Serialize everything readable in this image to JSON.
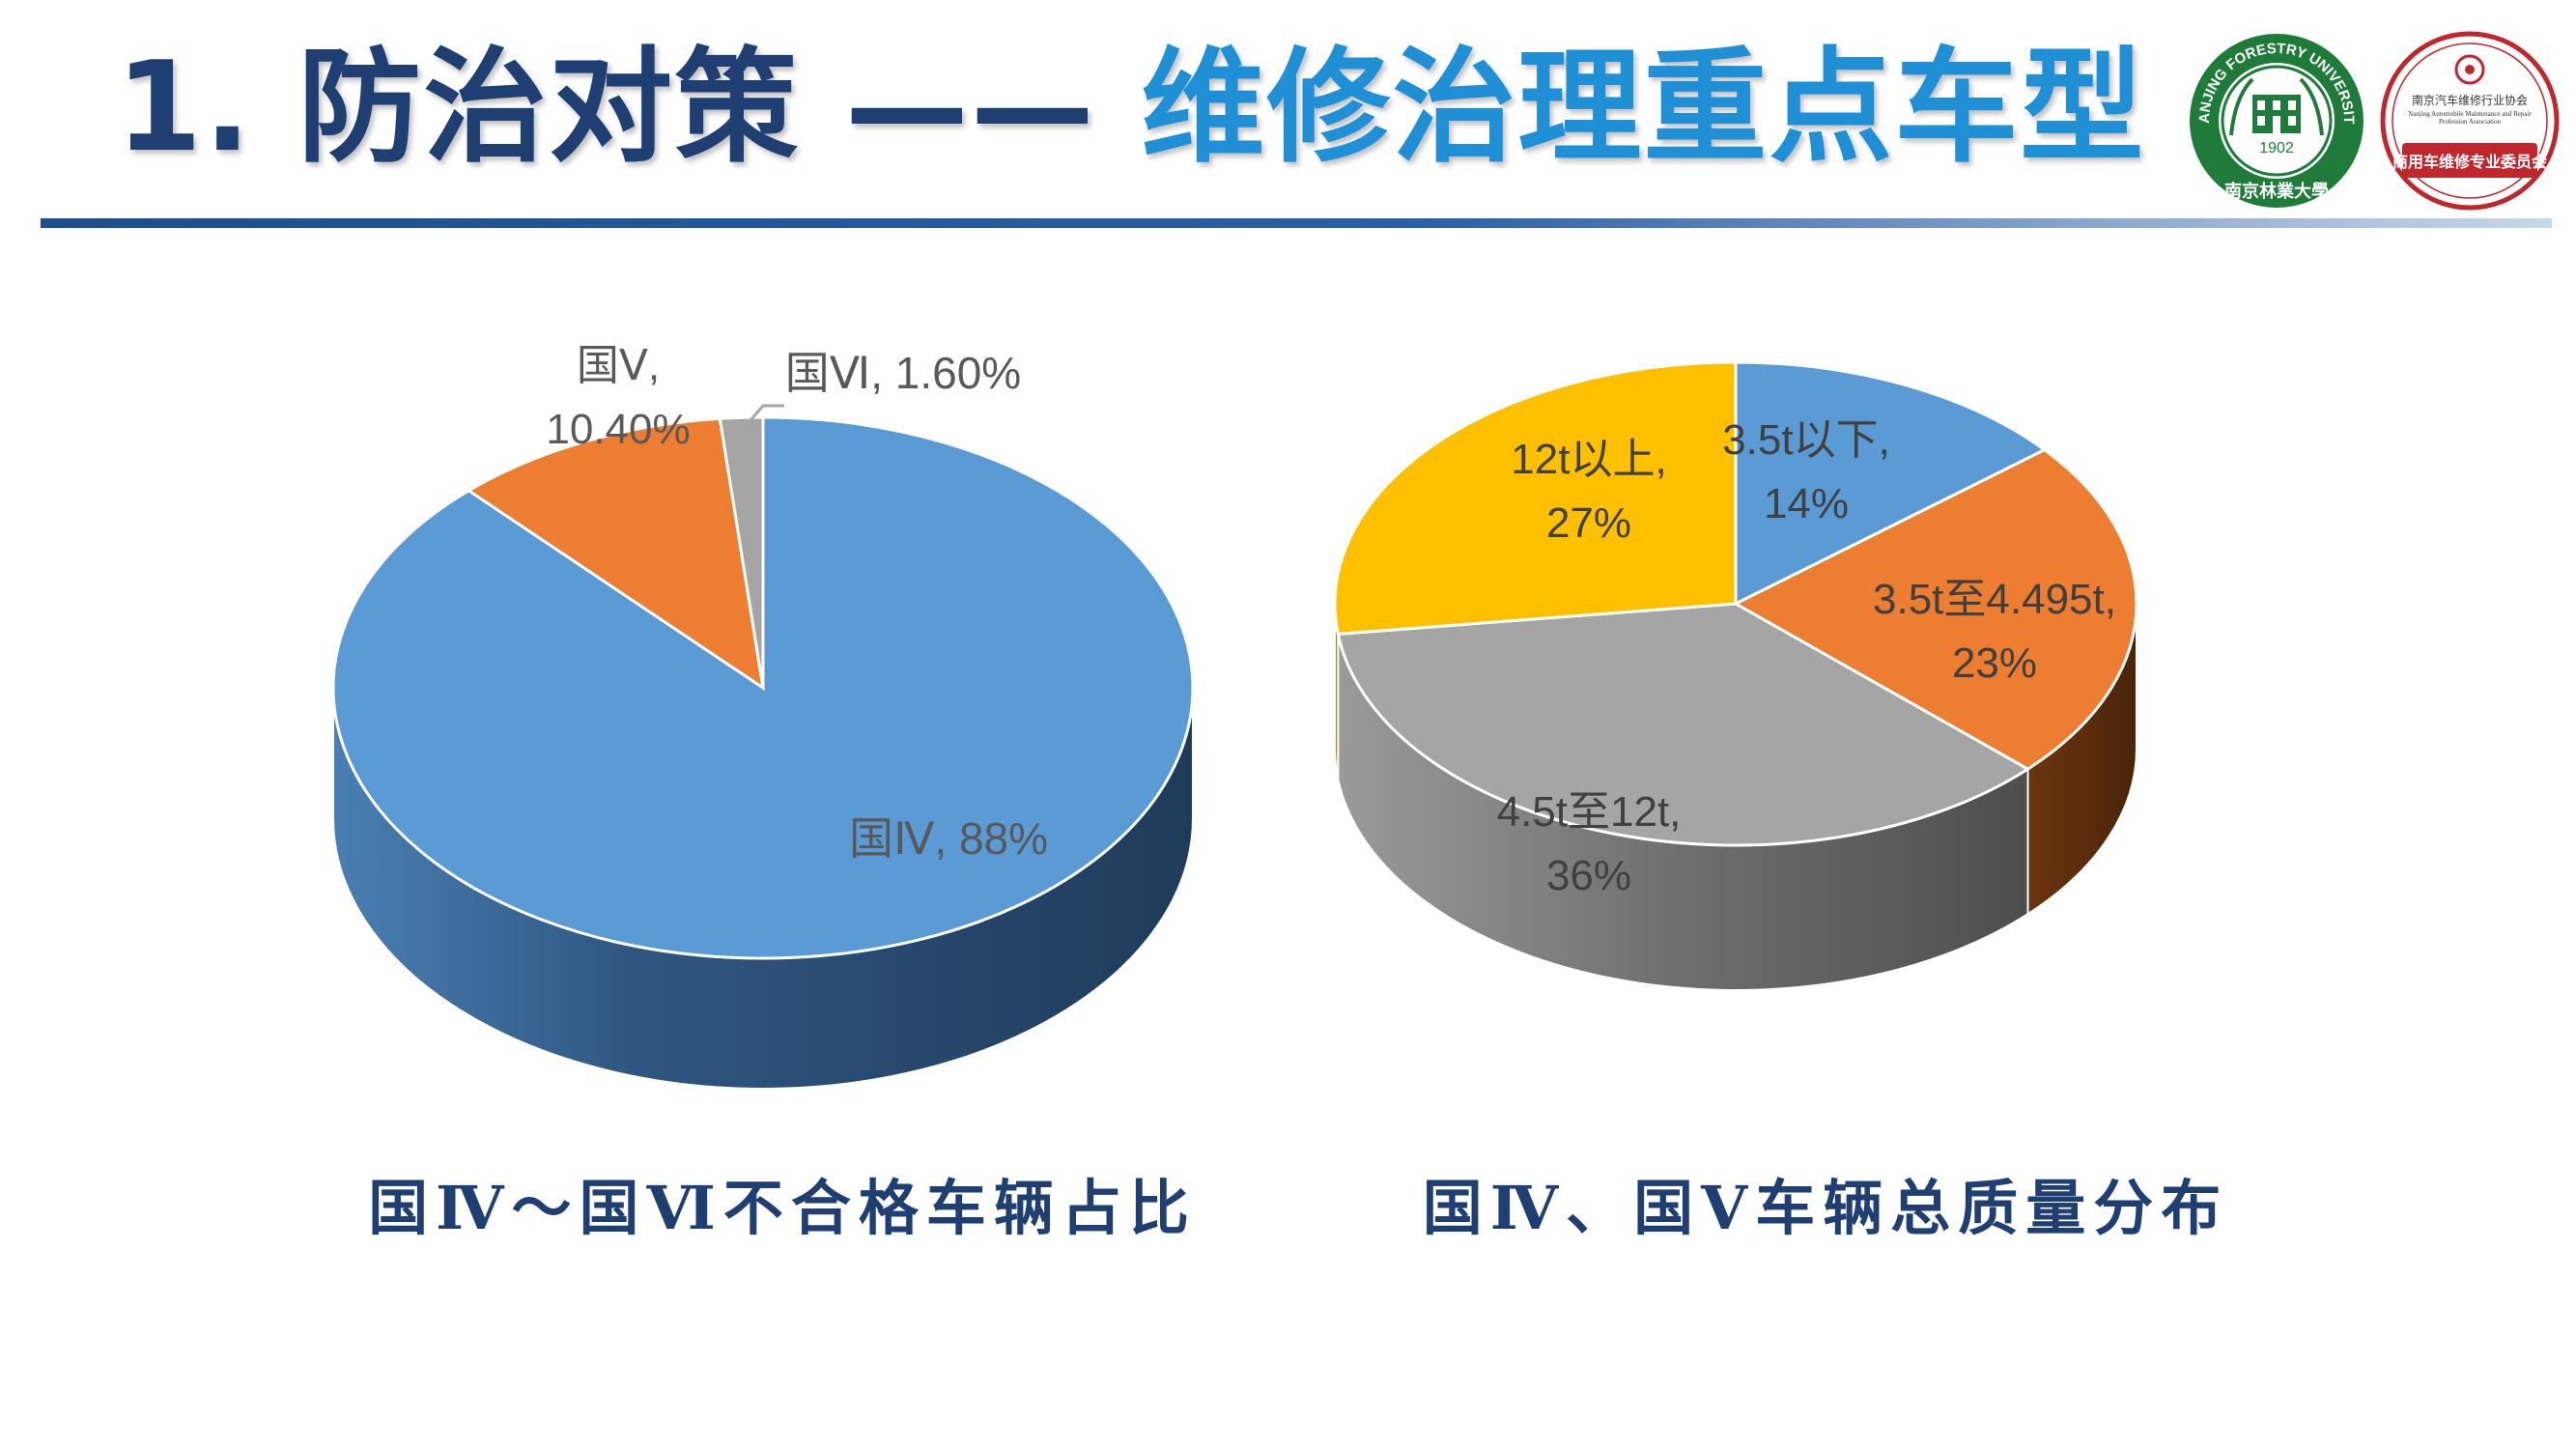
{
  "header": {
    "title_part1": "1. 防治对策 ——",
    "title_part2": "维修治理重点车型"
  },
  "logos": {
    "left_ring_text": "NANJING FORESTRY UNIVERSITY",
    "left_year": "1902",
    "left_bottom_text": "南京林業大學",
    "right_top_text": "南京汽车维修行业协会",
    "right_sub_text": "Nanjing Automobile Maintenance and Repair Profession Association",
    "right_bottom_text": "商用车维修专业委员会"
  },
  "colors": {
    "blue": "#5b9bd5",
    "orange": "#ed7d31",
    "gray": "#a5a5a5",
    "yellow": "#ffc000",
    "title_dark": "#1f3f72",
    "title_accent": "#1f8fd6"
  },
  "chart_data": [
    {
      "type": "pie",
      "style": "3d",
      "title": "",
      "caption": "国Ⅳ～国Ⅵ不合格车辆占比",
      "labels": [
        "国Ⅳ, 88%",
        "国Ⅴ, 10.40%",
        "国Ⅵ, 1.60%"
      ],
      "categories": [
        "国Ⅳ",
        "国Ⅴ",
        "国Ⅵ"
      ],
      "values": [
        88,
        10.4,
        1.6
      ],
      "colors": [
        "#5b9bd5",
        "#ed7d31",
        "#a5a5a5"
      ]
    },
    {
      "type": "pie",
      "style": "3d",
      "title": "",
      "caption": "国Ⅳ、国Ⅴ车辆总质量分布",
      "labels": [
        "3.5t以下, 14%",
        "3.5t至4.495t, 23%",
        "4.5t至12t, 36%",
        "12t以上, 27%"
      ],
      "categories": [
        "3.5t以下",
        "3.5t至4.495t",
        "4.5t至12t",
        "12t以上"
      ],
      "values": [
        14,
        23,
        36,
        27
      ],
      "colors": [
        "#5b9bd5",
        "#ed7d31",
        "#a5a5a5",
        "#ffc000"
      ]
    }
  ]
}
